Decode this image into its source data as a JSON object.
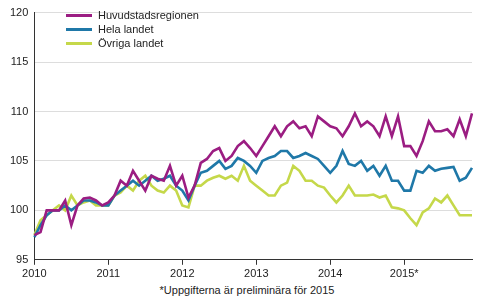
{
  "chart_data": {
    "type": "line",
    "categories": [
      "2010",
      null,
      null,
      null,
      null,
      null,
      null,
      null,
      null,
      null,
      null,
      null,
      "2011",
      null,
      null,
      null,
      null,
      null,
      null,
      null,
      null,
      null,
      null,
      null,
      "2012",
      null,
      null,
      null,
      null,
      null,
      null,
      null,
      null,
      null,
      null,
      null,
      "2013",
      null,
      null,
      null,
      null,
      null,
      null,
      null,
      null,
      null,
      null,
      null,
      "2014",
      null,
      null,
      null,
      null,
      null,
      null,
      null,
      null,
      null,
      null,
      null,
      "2015*",
      null,
      null,
      null,
      null,
      null,
      null,
      null,
      null,
      null,
      null,
      null
    ],
    "series": [
      {
        "name": "Huvudstadsregionen",
        "color": "#9b1d82",
        "values": [
          97.5,
          97.8,
          100,
          100,
          100,
          101,
          98.5,
          100.5,
          101.2,
          101.3,
          101,
          100.5,
          100.8,
          101.5,
          103,
          102.5,
          104,
          103,
          102,
          103.5,
          103.2,
          103,
          104.5,
          102.5,
          103.5,
          101.3,
          102.5,
          104.8,
          105.2,
          106,
          106.3,
          105,
          105.5,
          106.5,
          107,
          106.3,
          105.5,
          106.5,
          107.5,
          108.5,
          107.5,
          108.5,
          109,
          108.3,
          108.5,
          107.5,
          109.5,
          109,
          108.5,
          108.3,
          107.5,
          108.5,
          109.8,
          108.5,
          109,
          108.5,
          107.5,
          109.5,
          107.5,
          109.5,
          106.5,
          106.5,
          105.5,
          107,
          109,
          108,
          108,
          108.2,
          107.5,
          109.2,
          107.5,
          109.8
        ]
      },
      {
        "name": "Hela landet",
        "color": "#1f78a8",
        "values": [
          97.3,
          98.5,
          99.5,
          100,
          100,
          100.5,
          100,
          100.5,
          101,
          101,
          100.8,
          100.5,
          100.5,
          101.5,
          102,
          102.5,
          103,
          102.5,
          103,
          103.5,
          103,
          103.2,
          103.5,
          102.5,
          102,
          101,
          102.5,
          103.8,
          104,
          104.5,
          105,
          104.2,
          104.5,
          105.3,
          105,
          104.5,
          103.8,
          105,
          105.3,
          105.5,
          106,
          106,
          105.3,
          105.5,
          105.8,
          105.5,
          105.2,
          104.5,
          103.8,
          104.5,
          106,
          104.7,
          104.5,
          105,
          104,
          104.5,
          103.5,
          104.5,
          103,
          103,
          102,
          102,
          104,
          103.8,
          104.5,
          104,
          104.2,
          104.3,
          104.4,
          103,
          103.3,
          104.3
        ]
      },
      {
        "name": "Övriga landet",
        "color": "#c5d84a",
        "values": [
          97.5,
          99,
          99.5,
          100,
          100.5,
          100,
          101.5,
          100.5,
          100.8,
          101,
          100.5,
          100.5,
          100.5,
          101.5,
          101.8,
          102.5,
          102,
          103,
          103.5,
          102.5,
          102,
          101.8,
          102.5,
          102,
          100.5,
          100.3,
          102.5,
          102.5,
          103,
          103.3,
          103.5,
          103.2,
          103.5,
          103,
          104.5,
          103,
          102.5,
          102,
          101.5,
          101.5,
          102.5,
          102.8,
          104.5,
          104,
          103,
          103,
          102.5,
          102.3,
          101.5,
          100.8,
          101.5,
          102.5,
          101.5,
          101.5,
          101.5,
          101.6,
          101.3,
          101.5,
          100.3,
          100.2,
          100,
          99.2,
          98.5,
          99.8,
          100.2,
          101.2,
          100.8,
          101.5,
          100.5,
          99.5,
          99.5,
          99.5
        ]
      }
    ],
    "ylim": [
      95,
      120
    ],
    "yticks": [
      95,
      100,
      105,
      110,
      115,
      120
    ],
    "grid": true,
    "legend": "top-left",
    "annotations": [
      "*Uppgifterna är preliminära för 2015"
    ]
  }
}
